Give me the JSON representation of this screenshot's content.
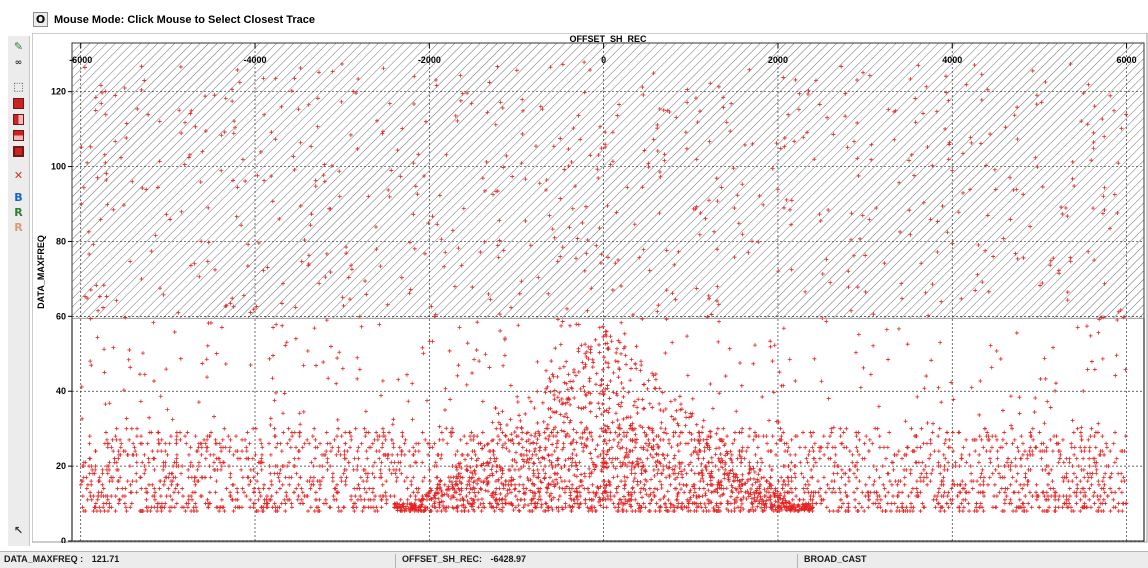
{
  "header": {
    "mode_button": "O",
    "mode_text": "Mouse Mode: Click Mouse to Select Closest Trace"
  },
  "toolbar": {
    "tools": [
      {
        "name": "pencil-icon",
        "glyph": "✎",
        "color": "#2e7d32"
      },
      {
        "name": "glasses-icon",
        "glyph": "∞",
        "color": "#333333"
      },
      {
        "name": "zoom-box-icon",
        "glyph": "⬚",
        "color": "#333333"
      },
      {
        "name": "red-square-icon",
        "color": "#cc2222"
      },
      {
        "name": "split-vertical-icon",
        "color": "#cc2222"
      },
      {
        "name": "split-horizontal-icon",
        "color": "#cc2222"
      },
      {
        "name": "select-region-icon",
        "color": "#cc2222"
      },
      {
        "name": "delete-x-icon",
        "glyph": "✕",
        "color": "#d32f2f"
      },
      {
        "name": "b-icon",
        "glyph": "B",
        "color": "#1565c0"
      },
      {
        "name": "r-green-icon",
        "glyph": "R",
        "color": "#2e7d32"
      },
      {
        "name": "r-disabled-icon",
        "glyph": "R",
        "color": "#d79b7b"
      },
      {
        "name": "pointer-icon",
        "glyph": "↖",
        "color": "#333333"
      }
    ]
  },
  "chart_data": {
    "type": "scatter",
    "title": "",
    "xlabel": "OFFSET_SH_REC",
    "ylabel": "DATA_MAXFREQ",
    "x_axis_position": "top",
    "xlim": [
      -6100,
      6200
    ],
    "ylim": [
      0,
      133
    ],
    "x_ticks": [
      -6000,
      -4000,
      -2000,
      0,
      2000,
      4000,
      6000
    ],
    "y_ticks": [
      0,
      20,
      40,
      60,
      80,
      100,
      120
    ],
    "grid": "dashed",
    "marker": "+",
    "marker_color": "#e52222",
    "hatched_region": {
      "y_from": 59.5,
      "y_to": 133
    },
    "point_density": {
      "offset_range": [
        -6000,
        6000
      ],
      "bulk_freq_range": [
        8,
        30
      ],
      "near_offset_peak": 58,
      "notes": "dense cloud 8-30 Hz across all offsets, V-shaped spike toward 60 Hz near zero offset, sparse scatter 30-128 Hz"
    }
  },
  "status": {
    "cell1_label": "DATA_MAXFREQ :",
    "cell1_value": "121.71",
    "cell2_label": "OFFSET_SH_REC:",
    "cell2_value": "-6428.97",
    "cell3_label": "BROAD_CAST"
  }
}
